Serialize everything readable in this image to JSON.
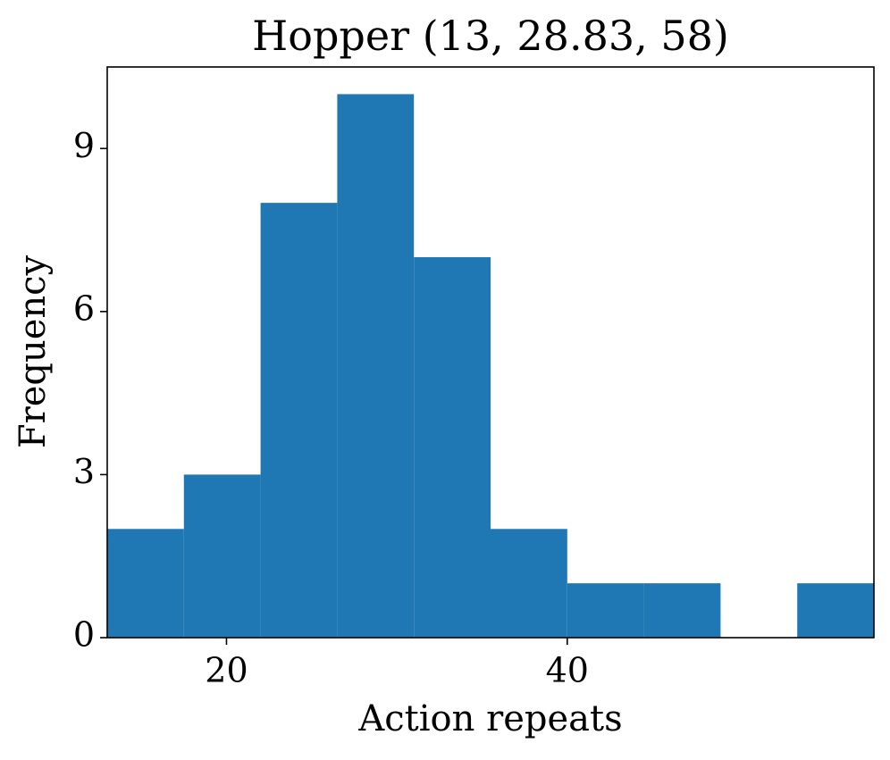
{
  "chart_data": {
    "type": "histogram",
    "title": "Hopper (13, 28.83, 58)",
    "xlabel": "Action repeats",
    "ylabel": "Frequency",
    "bins": [
      13,
      17.5,
      22,
      26.5,
      31,
      35.5,
      40,
      44.5,
      49,
      53.5,
      58
    ],
    "values": [
      2,
      3,
      8,
      10,
      7,
      2,
      1,
      1,
      0,
      1
    ],
    "color": "#1f77b4",
    "xlim": [
      13,
      58
    ],
    "ylim": [
      0,
      10.5
    ],
    "xticks": [
      20,
      40
    ],
    "yticks": [
      0,
      3,
      6,
      9
    ]
  }
}
